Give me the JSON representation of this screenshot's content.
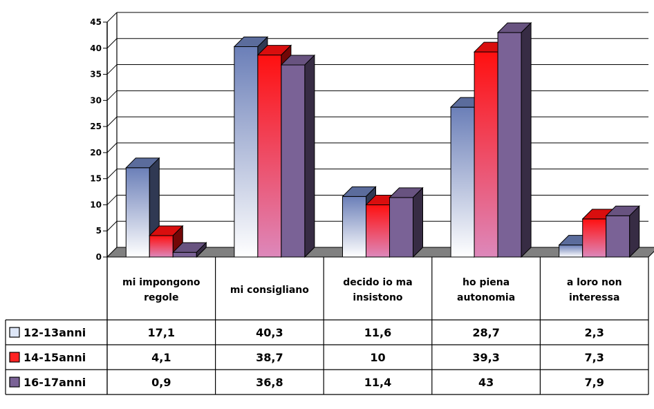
{
  "chart_data": {
    "type": "bar",
    "title": "",
    "xlabel": "",
    "ylabel": "",
    "ylim": [
      0,
      45
    ],
    "yticks": [
      "0",
      "5",
      "10",
      "15",
      "20",
      "25",
      "30",
      "35",
      "40",
      "45"
    ],
    "grid": true,
    "categories": [
      [
        "mi impongono",
        "regole"
      ],
      [
        "mi consigliano"
      ],
      [
        "decido io ma",
        "insistono"
      ],
      [
        "ho piena",
        "autonomia"
      ],
      [
        "a loro non",
        "interessa"
      ]
    ],
    "series": [
      {
        "name": "12-13anni",
        "values": [
          17.1,
          40.3,
          11.6,
          28.7,
          2.3
        ],
        "value_labels": [
          "17,1",
          "40,3",
          "11,6",
          "28,7",
          "2,3"
        ],
        "color": "#6b7fb8",
        "color_light": "#ffffff",
        "legend_color": "#dde6f7"
      },
      {
        "name": "14-15anni",
        "values": [
          4.1,
          38.7,
          10,
          39.3,
          7.3
        ],
        "value_labels": [
          "4,1",
          "38,7",
          "10",
          "39,3",
          "7,3"
        ],
        "color": "#ff1010",
        "color_light": "#dd88bb",
        "legend_color": "#ff2222"
      },
      {
        "name": "16-17anni",
        "values": [
          0.9,
          36.8,
          11.4,
          43,
          7.9
        ],
        "value_labels": [
          "0,9",
          "36,8",
          "11,4",
          "43",
          "7,9"
        ],
        "color": "#7a6296",
        "color_light": "#7a6296",
        "legend_color": "#7a6296"
      }
    ],
    "floor_color": "#808080"
  }
}
